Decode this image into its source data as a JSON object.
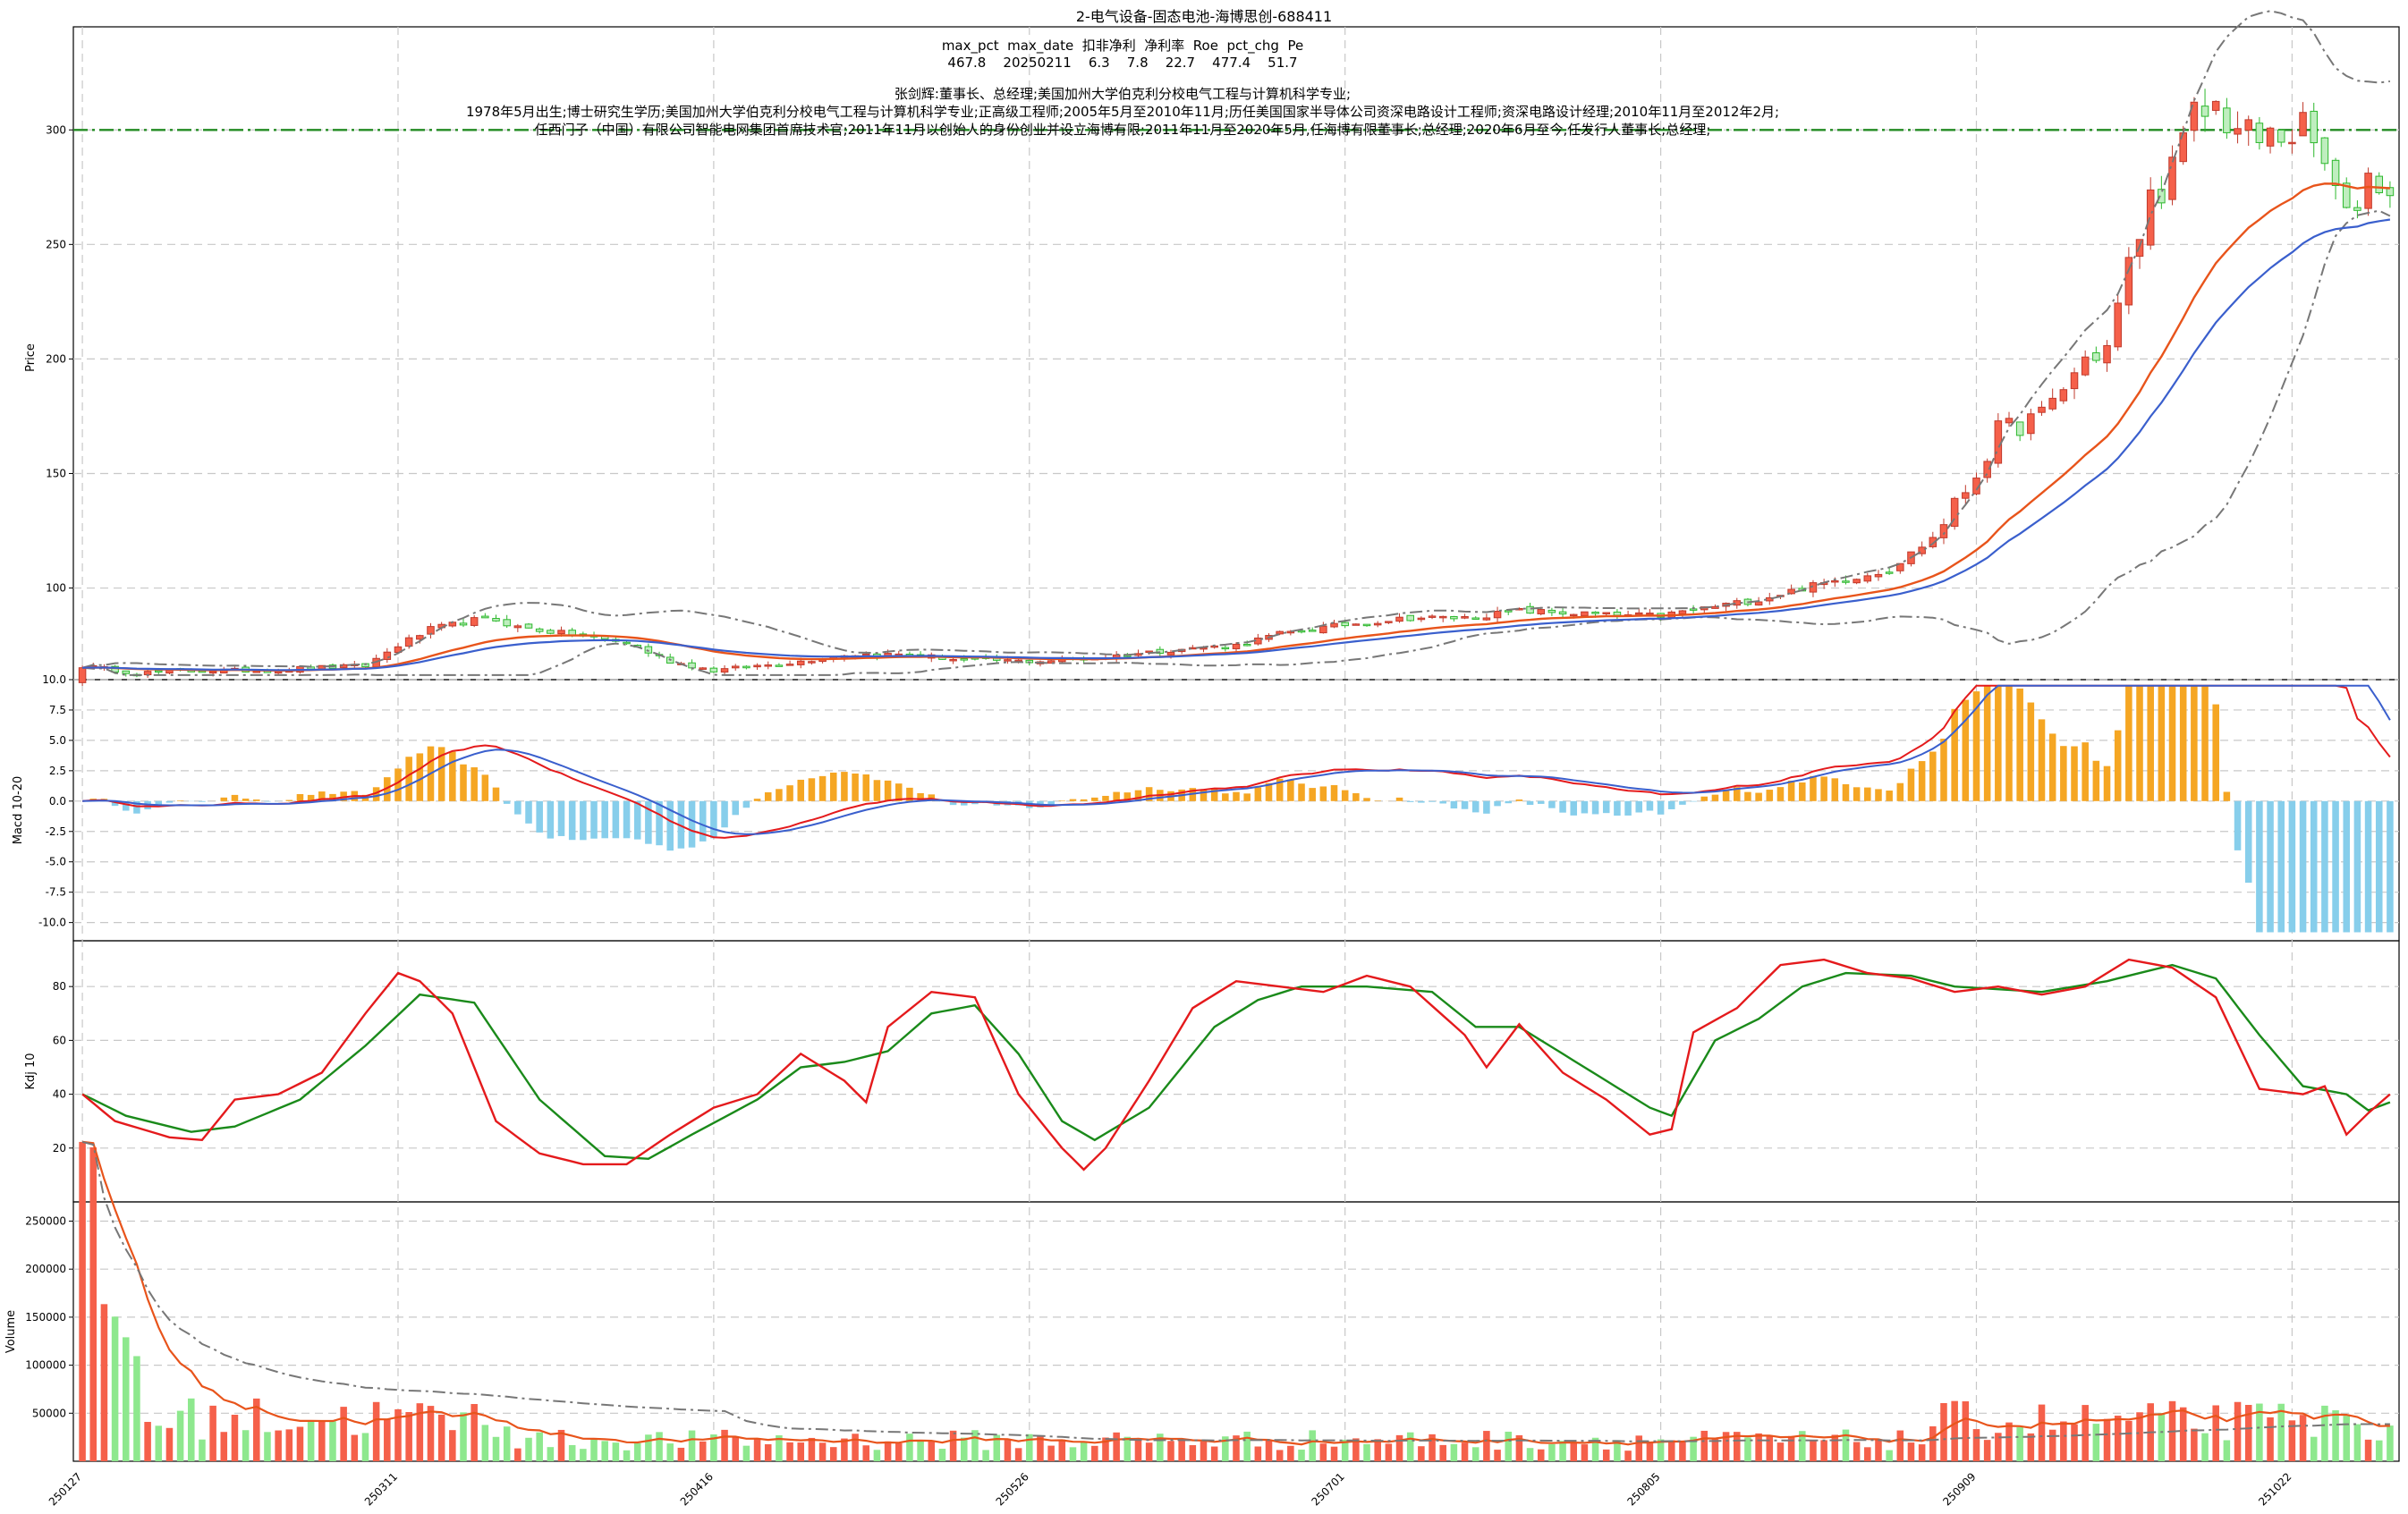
{
  "chart_data": {
    "type": "candlestick",
    "title": "2-电气设备-固态电池-海博思创-688411",
    "info": {
      "header": "max_pct  max_date  扣非净利  净利率  Roe  pct_chg  Pe",
      "values": "467.8    20250211    6.3    7.8    22.7    477.4    51.7",
      "person_line1": "张剑辉:董事长、总经理;美国加州大学伯克利分校电气工程与计算机科学专业;",
      "person_line2": "1978年5月出生;博士研究生学历;美国加州大学伯克利分校电气工程与计算机科学专业;正高级工程师;2005年5月至2010年11月;历任美国国家半导体公司资深电路设计工程师;资深电路设计经理;2010年11月至2012年2月;",
      "person_line3": "任西门子（中国）有限公司智能电网集团首席技术官;2011年11月以创始人的身份创业并设立海博有限;2011年11月至2020年5月,任海博有限董事长;总经理;2020年6月至今,任发行人董事长;总经理;"
    },
    "x_ticks": [
      "250127",
      "250311",
      "250416",
      "250526",
      "250701",
      "250805",
      "250909",
      "251022"
    ],
    "x_tick_index": [
      0,
      29,
      58,
      87,
      116,
      145,
      174,
      203
    ],
    "n_bars": 213,
    "panels": {
      "price": {
        "ylabel": "Price",
        "ylim": [
          60,
          345
        ],
        "ticks": [
          100,
          150,
          200,
          250,
          300
        ],
        "hline": 300
      },
      "macd": {
        "ylabel": "Macd 10-20",
        "ylim": [
          -11.5,
          10
        ],
        "ticks": [
          10.0,
          7.5,
          5.0,
          2.5,
          0.0,
          -2.5,
          -5.0,
          -7.5,
          -10.0
        ],
        "tick_labels": [
          "10.0",
          "7.5",
          "5.0",
          "2.5",
          "0.0",
          "-2.5",
          "-5.0",
          "-7.5",
          "-10.0"
        ]
      },
      "kdj": {
        "ylabel": "Kdj 10",
        "ylim": [
          0,
          97
        ],
        "ticks": [
          20,
          40,
          60,
          80
        ]
      },
      "volume": {
        "ylabel": "Volume",
        "ylim": [
          0,
          270000
        ],
        "ticks": [
          50000,
          100000,
          150000,
          200000,
          250000
        ]
      }
    },
    "price_keypoints": [
      [
        0,
        66
      ],
      [
        5,
        63
      ],
      [
        12,
        64
      ],
      [
        18,
        64
      ],
      [
        20,
        65
      ],
      [
        26,
        66
      ],
      [
        29,
        75
      ],
      [
        32,
        82
      ],
      [
        36,
        86
      ],
      [
        38,
        86
      ],
      [
        40,
        83
      ],
      [
        46,
        79
      ],
      [
        50,
        76
      ],
      [
        54,
        68
      ],
      [
        58,
        64
      ],
      [
        62,
        66
      ],
      [
        66,
        68
      ],
      [
        70,
        71
      ],
      [
        76,
        71
      ],
      [
        80,
        69
      ],
      [
        87,
        68
      ],
      [
        92,
        69
      ],
      [
        96,
        71
      ],
      [
        100,
        73
      ],
      [
        106,
        75
      ],
      [
        110,
        80
      ],
      [
        116,
        84
      ],
      [
        122,
        87
      ],
      [
        127,
        87
      ],
      [
        132,
        90
      ],
      [
        137,
        89
      ],
      [
        141,
        88
      ],
      [
        145,
        88
      ],
      [
        150,
        92
      ],
      [
        154,
        95
      ],
      [
        158,
        100
      ],
      [
        162,
        104
      ],
      [
        166,
        108
      ],
      [
        170,
        122
      ],
      [
        174,
        150
      ],
      [
        176,
        168
      ],
      [
        180,
        175
      ],
      [
        184,
        200
      ],
      [
        186,
        205
      ],
      [
        188,
        240
      ],
      [
        190,
        270
      ],
      [
        192,
        282
      ],
      [
        194,
        305
      ],
      [
        196,
        310
      ],
      [
        198,
        300
      ],
      [
        200,
        295
      ],
      [
        202,
        298
      ],
      [
        204,
        300
      ],
      [
        206,
        285
      ],
      [
        208,
        260
      ],
      [
        210,
        280
      ],
      [
        212,
        275
      ]
    ],
    "k_keypoints": [
      [
        0,
        40
      ],
      [
        3,
        30
      ],
      [
        8,
        24
      ],
      [
        11,
        23
      ],
      [
        14,
        38
      ],
      [
        18,
        40
      ],
      [
        22,
        48
      ],
      [
        26,
        70
      ],
      [
        29,
        85
      ],
      [
        31,
        82
      ],
      [
        34,
        70
      ],
      [
        38,
        30
      ],
      [
        42,
        18
      ],
      [
        46,
        14
      ],
      [
        50,
        14
      ],
      [
        54,
        25
      ],
      [
        58,
        35
      ],
      [
        62,
        40
      ],
      [
        66,
        55
      ],
      [
        70,
        45
      ],
      [
        72,
        37
      ],
      [
        74,
        65
      ],
      [
        78,
        78
      ],
      [
        82,
        76
      ],
      [
        86,
        40
      ],
      [
        90,
        20
      ],
      [
        92,
        12
      ],
      [
        94,
        20
      ],
      [
        98,
        45
      ],
      [
        102,
        72
      ],
      [
        106,
        82
      ],
      [
        110,
        80
      ],
      [
        114,
        78
      ],
      [
        118,
        84
      ],
      [
        122,
        80
      ],
      [
        127,
        62
      ],
      [
        129,
        50
      ],
      [
        132,
        66
      ],
      [
        136,
        48
      ],
      [
        140,
        38
      ],
      [
        144,
        25
      ],
      [
        146,
        27
      ],
      [
        148,
        63
      ],
      [
        152,
        72
      ],
      [
        156,
        88
      ],
      [
        160,
        90
      ],
      [
        164,
        85
      ],
      [
        168,
        83
      ],
      [
        172,
        78
      ],
      [
        176,
        80
      ],
      [
        180,
        77
      ],
      [
        184,
        80
      ],
      [
        188,
        90
      ],
      [
        192,
        87
      ],
      [
        196,
        76
      ],
      [
        200,
        42
      ],
      [
        204,
        40
      ],
      [
        206,
        43
      ],
      [
        208,
        25
      ],
      [
        210,
        33
      ],
      [
        212,
        40
      ]
    ],
    "d_keypoints": [
      [
        0,
        40
      ],
      [
        4,
        32
      ],
      [
        10,
        26
      ],
      [
        14,
        28
      ],
      [
        20,
        38
      ],
      [
        26,
        58
      ],
      [
        31,
        77
      ],
      [
        36,
        74
      ],
      [
        42,
        38
      ],
      [
        48,
        17
      ],
      [
        52,
        16
      ],
      [
        56,
        25
      ],
      [
        62,
        38
      ],
      [
        66,
        50
      ],
      [
        70,
        52
      ],
      [
        74,
        56
      ],
      [
        78,
        70
      ],
      [
        82,
        73
      ],
      [
        86,
        55
      ],
      [
        90,
        30
      ],
      [
        93,
        23
      ],
      [
        98,
        35
      ],
      [
        104,
        65
      ],
      [
        108,
        75
      ],
      [
        112,
        80
      ],
      [
        118,
        80
      ],
      [
        124,
        78
      ],
      [
        128,
        65
      ],
      [
        132,
        65
      ],
      [
        136,
        55
      ],
      [
        140,
        45
      ],
      [
        144,
        35
      ],
      [
        146,
        32
      ],
      [
        150,
        60
      ],
      [
        154,
        68
      ],
      [
        158,
        80
      ],
      [
        162,
        85
      ],
      [
        168,
        84
      ],
      [
        172,
        80
      ],
      [
        180,
        78
      ],
      [
        186,
        82
      ],
      [
        192,
        88
      ],
      [
        196,
        83
      ],
      [
        200,
        62
      ],
      [
        204,
        43
      ],
      [
        208,
        40
      ],
      [
        210,
        34
      ],
      [
        212,
        37
      ]
    ]
  },
  "colors": {
    "up": "#f5604a",
    "down_body": "#bfeebf",
    "down_edge": "#2db82d",
    "ma_red": "#e8541b",
    "ma_blue": "#3a5fcd",
    "boll": "#777777",
    "hline": "#228b22",
    "macd_pos": "#f5a623",
    "macd_neg": "#87ceeb",
    "k": "#e41a1c",
    "d": "#1a8a1a",
    "vol_up": "#f5604a",
    "vol_down": "#8ee88e"
  }
}
